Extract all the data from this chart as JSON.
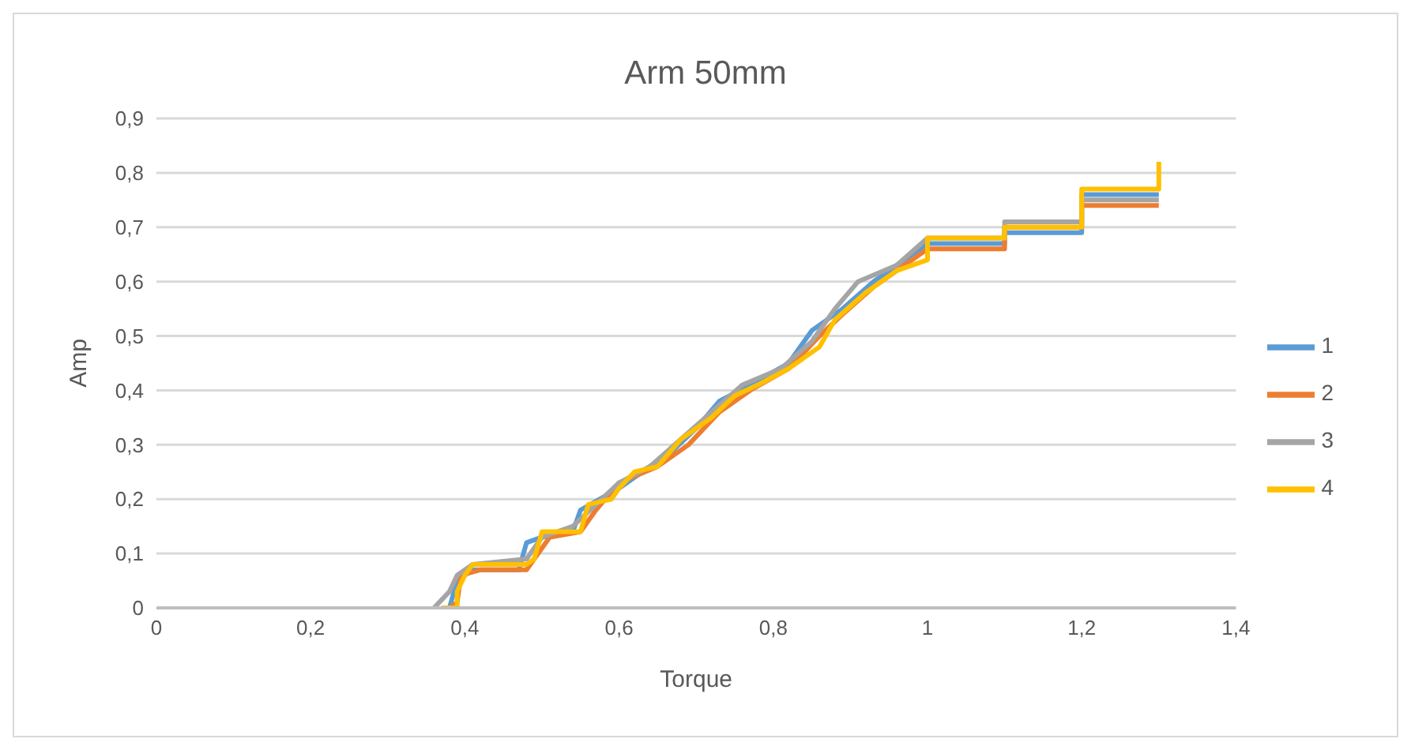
{
  "chart_data": {
    "type": "line",
    "title": "Arm 50mm",
    "xlabel": "Torque",
    "ylabel": "Amp",
    "xlim": [
      0,
      1.4
    ],
    "xticks": [
      0,
      {
        "value": 0.2,
        "label": "0,2"
      },
      {
        "value": 0.4,
        "label": "0,4"
      },
      {
        "value": 0.6,
        "label": "0,6"
      },
      {
        "value": 0.8,
        "label": "0,8"
      },
      1,
      {
        "value": 1.2,
        "label": "1,2"
      },
      {
        "value": 1.4,
        "label": "1,4"
      }
    ],
    "ylim": [
      0,
      0.9
    ],
    "yticks": [
      0,
      {
        "value": 0.1,
        "label": "0,1"
      },
      {
        "value": 0.2,
        "label": "0,2"
      },
      {
        "value": 0.3,
        "label": "0,3"
      },
      {
        "value": 0.4,
        "label": "0,4"
      },
      {
        "value": 0.5,
        "label": "0,5"
      },
      {
        "value": 0.6,
        "label": "0,6"
      },
      {
        "value": 0.7,
        "label": "0,7"
      },
      {
        "value": 0.8,
        "label": "0,8"
      },
      {
        "value": 0.9,
        "label": "0,9"
      }
    ],
    "grid": "y",
    "legend": "right",
    "marker": "none",
    "line_style": "solid",
    "series": [
      {
        "name": "1",
        "color": "#5b9bd5",
        "x": [
          0.37,
          0.38,
          0.39,
          0.41,
          0.47,
          0.48,
          0.5,
          0.54,
          0.55,
          0.6,
          0.63,
          0.67,
          0.7,
          0.73,
          0.77,
          0.82,
          0.85,
          0.89,
          0.93,
          0.97,
          1.0,
          1.1,
          1.1,
          1.2,
          1.2,
          1.3
        ],
        "values": [
          0,
          0,
          0.05,
          0.07,
          0.07,
          0.12,
          0.13,
          0.14,
          0.18,
          0.22,
          0.25,
          0.29,
          0.33,
          0.38,
          0.41,
          0.45,
          0.51,
          0.55,
          0.6,
          0.64,
          0.67,
          0.67,
          0.69,
          0.69,
          0.76,
          0.76
        ]
      },
      {
        "name": "2",
        "color": "#ed7d31",
        "x": [
          0.38,
          0.39,
          0.395,
          0.42,
          0.48,
          0.49,
          0.51,
          0.55,
          0.57,
          0.6,
          0.65,
          0.69,
          0.73,
          0.77,
          0.82,
          0.86,
          0.89,
          0.93,
          0.97,
          1.0,
          1.1,
          1.1,
          1.2,
          1.2,
          1.3
        ],
        "values": [
          0,
          0.01,
          0.06,
          0.07,
          0.07,
          0.09,
          0.13,
          0.14,
          0.18,
          0.23,
          0.26,
          0.3,
          0.36,
          0.4,
          0.44,
          0.5,
          0.54,
          0.59,
          0.63,
          0.66,
          0.66,
          0.7,
          0.7,
          0.74,
          0.74
        ]
      },
      {
        "name": "3",
        "color": "#a5a5a5",
        "x": [
          0.36,
          0.38,
          0.39,
          0.41,
          0.48,
          0.5,
          0.54,
          0.57,
          0.6,
          0.64,
          0.68,
          0.72,
          0.76,
          0.81,
          0.85,
          0.88,
          0.91,
          0.96,
          1.0,
          1.1,
          1.1,
          1.2,
          1.2,
          1.3
        ],
        "values": [
          0,
          0.03,
          0.06,
          0.08,
          0.09,
          0.13,
          0.15,
          0.19,
          0.23,
          0.26,
          0.31,
          0.36,
          0.41,
          0.44,
          0.49,
          0.55,
          0.6,
          0.63,
          0.68,
          0.68,
          0.71,
          0.71,
          0.75,
          0.75
        ]
      },
      {
        "name": "4",
        "color": "#ffc000",
        "x": [
          0.37,
          0.39,
          0.39,
          0.4,
          0.41,
          0.48,
          0.49,
          0.5,
          0.55,
          0.56,
          0.59,
          0.6,
          0.62,
          0.65,
          0.68,
          0.72,
          0.75,
          0.78,
          0.82,
          0.86,
          0.88,
          0.92,
          0.96,
          1.0,
          1.0,
          1.1,
          1.1,
          1.2,
          1.2,
          1.3,
          1.3
        ],
        "values": [
          0,
          0,
          0.03,
          0.06,
          0.08,
          0.08,
          0.09,
          0.14,
          0.14,
          0.19,
          0.2,
          0.22,
          0.25,
          0.26,
          0.31,
          0.35,
          0.39,
          0.41,
          0.44,
          0.48,
          0.53,
          0.58,
          0.62,
          0.64,
          0.68,
          0.68,
          0.7,
          0.7,
          0.77,
          0.77,
          0.82
        ]
      }
    ]
  }
}
